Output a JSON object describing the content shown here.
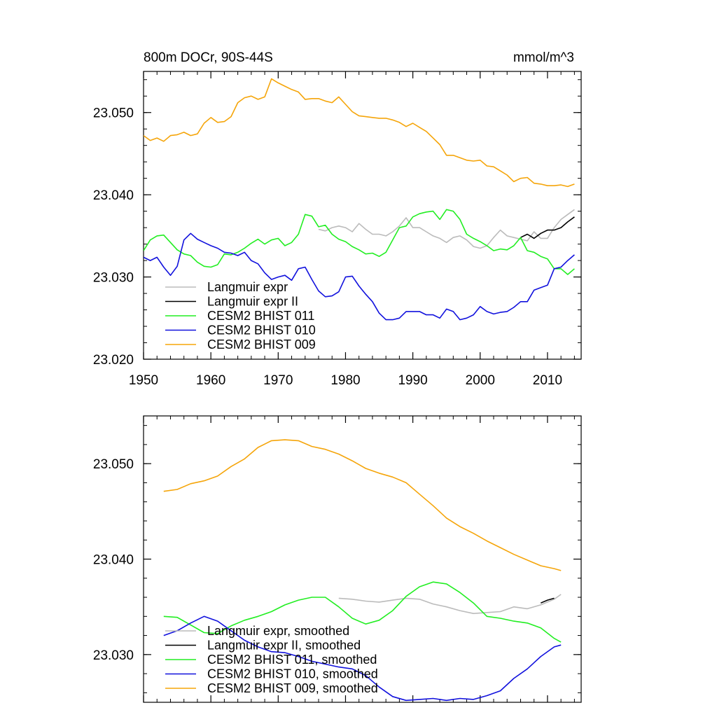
{
  "colors": {
    "langmuir": "#bbbbbb",
    "langmuir2": "#000000",
    "cesm011": "#22ee22",
    "cesm010": "#1111dd",
    "cesm009": "#f5a50a"
  },
  "chart_data": [
    {
      "type": "line",
      "title": "800m DOCr, 90S-44S",
      "units": "mmol/m^3",
      "xlim": [
        1950,
        2015
      ],
      "ylim": [
        23.02,
        23.055
      ],
      "xticks": [
        1950,
        1960,
        1970,
        1980,
        1990,
        2000,
        2010
      ],
      "xtick_labels": [
        "1950",
        "1960",
        "1970",
        "1980",
        "1990",
        "2000",
        "2010"
      ],
      "yticks": [
        23.02,
        23.03,
        23.04,
        23.05
      ],
      "ytick_labels": [
        "23.020",
        "23.030",
        "23.040",
        "23.050"
      ],
      "legend_position": "bottom-left",
      "series": [
        {
          "key": "langmuir",
          "name": "Langmuir expr",
          "x": [
            1976,
            1977,
            1978,
            1979,
            1980,
            1981,
            1982,
            1983,
            1984,
            1985,
            1986,
            1987,
            1988,
            1989,
            1990,
            1991,
            1992,
            1993,
            1994,
            1995,
            1996,
            1997,
            1998,
            1999,
            2000,
            2001,
            2002,
            2003,
            2004,
            2005,
            2006,
            2007,
            2008,
            2009,
            2010,
            2011,
            2012,
            2013,
            2014
          ],
          "y": [
            23.0358,
            23.0356,
            23.036,
            23.0362,
            23.036,
            23.0355,
            23.0365,
            23.0358,
            23.0352,
            23.0352,
            23.035,
            23.0355,
            23.0362,
            23.0372,
            23.036,
            23.036,
            23.0355,
            23.035,
            23.0347,
            23.0342,
            23.0348,
            23.035,
            23.0345,
            23.0337,
            23.0335,
            23.0338,
            23.0348,
            23.0357,
            23.035,
            23.0348,
            23.0346,
            23.0344,
            23.0355,
            23.0347,
            23.0347,
            23.036,
            23.037,
            23.0376,
            23.0382
          ]
        },
        {
          "key": "langmuir2",
          "name": "Langmuir expr II",
          "x": [
            2006,
            2007,
            2008,
            2009,
            2010,
            2011,
            2012,
            2013,
            2014
          ],
          "y": [
            23.0348,
            23.0352,
            23.0347,
            23.0353,
            23.0357,
            23.0357,
            23.036,
            23.0367,
            23.0373
          ]
        },
        {
          "key": "cesm011",
          "name": "CESM2 BHIST 011",
          "x": [
            1950,
            1951,
            1952,
            1953,
            1954,
            1955,
            1956,
            1957,
            1958,
            1959,
            1960,
            1961,
            1962,
            1963,
            1964,
            1965,
            1966,
            1967,
            1968,
            1969,
            1970,
            1971,
            1972,
            1973,
            1974,
            1975,
            1976,
            1977,
            1978,
            1979,
            1980,
            1981,
            1982,
            1983,
            1984,
            1985,
            1986,
            1987,
            1988,
            1989,
            1990,
            1991,
            1992,
            1993,
            1994,
            1995,
            1996,
            1997,
            1998,
            1999,
            2000,
            2001,
            2002,
            2003,
            2004,
            2005,
            2006,
            2007,
            2008,
            2009,
            2010,
            2011,
            2012,
            2013,
            2014
          ],
          "y": [
            23.0332,
            23.0345,
            23.035,
            23.0351,
            23.0342,
            23.0333,
            23.0328,
            23.0326,
            23.0318,
            23.0313,
            23.0312,
            23.0315,
            23.0328,
            23.0327,
            23.033,
            23.0335,
            23.0341,
            23.0346,
            23.034,
            23.0345,
            23.0347,
            23.0338,
            23.0342,
            23.0352,
            23.0376,
            23.0374,
            23.0361,
            23.0363,
            23.0352,
            23.0346,
            23.0343,
            23.0337,
            23.0333,
            23.0328,
            23.0329,
            23.0325,
            23.033,
            23.0345,
            23.036,
            23.0362,
            23.0373,
            23.0377,
            23.0379,
            23.038,
            23.037,
            23.0382,
            23.038,
            23.037,
            23.0352,
            23.0347,
            23.0343,
            23.0338,
            23.0332,
            23.0334,
            23.0333,
            23.0338,
            23.0348,
            23.0332,
            23.033,
            23.0325,
            23.0322,
            23.031,
            23.031,
            23.0303,
            23.031
          ]
        },
        {
          "key": "cesm010",
          "name": "CESM2 BHIST 010",
          "x": [
            1950,
            1951,
            1952,
            1953,
            1954,
            1955,
            1956,
            1957,
            1958,
            1959,
            1960,
            1961,
            1962,
            1963,
            1964,
            1965,
            1966,
            1967,
            1968,
            1969,
            1970,
            1971,
            1972,
            1973,
            1974,
            1975,
            1976,
            1977,
            1978,
            1979,
            1980,
            1981,
            1982,
            1983,
            1984,
            1985,
            1986,
            1987,
            1988,
            1989,
            1990,
            1991,
            1992,
            1993,
            1994,
            1995,
            1996,
            1997,
            1998,
            1999,
            2000,
            2001,
            2002,
            2003,
            2004,
            2005,
            2006,
            2007,
            2008,
            2009,
            2010,
            2011,
            2012,
            2013,
            2014
          ],
          "y": [
            23.0324,
            23.032,
            23.0324,
            23.0312,
            23.0302,
            23.0313,
            23.0345,
            23.0353,
            23.0346,
            23.0342,
            23.0338,
            23.0335,
            23.033,
            23.0329,
            23.0326,
            23.033,
            23.032,
            23.0316,
            23.0305,
            23.0297,
            23.03,
            23.0302,
            23.0296,
            23.031,
            23.0312,
            23.0297,
            23.0283,
            23.0276,
            23.0277,
            23.0282,
            23.03,
            23.0301,
            23.0289,
            23.0279,
            23.027,
            23.0256,
            23.0248,
            23.0248,
            23.025,
            23.0258,
            23.0258,
            23.0258,
            23.0254,
            23.0254,
            23.025,
            23.0261,
            23.0258,
            23.0248,
            23.025,
            23.0254,
            23.0264,
            23.0258,
            23.0255,
            23.0257,
            23.0258,
            23.0263,
            23.027,
            23.027,
            23.0284,
            23.0287,
            23.029,
            23.031,
            23.0312,
            23.032,
            23.0327
          ]
        },
        {
          "key": "cesm009",
          "name": "CESM2 BHIST 009",
          "x": [
            1950,
            1951,
            1952,
            1953,
            1954,
            1955,
            1956,
            1957,
            1958,
            1959,
            1960,
            1961,
            1962,
            1963,
            1964,
            1965,
            1966,
            1967,
            1968,
            1969,
            1970,
            1971,
            1972,
            1973,
            1974,
            1975,
            1976,
            1977,
            1978,
            1979,
            1980,
            1981,
            1982,
            1983,
            1984,
            1985,
            1986,
            1987,
            1988,
            1989,
            1990,
            1991,
            1992,
            1993,
            1994,
            1995,
            1996,
            1997,
            1998,
            1999,
            2000,
            2001,
            2002,
            2003,
            2004,
            2005,
            2006,
            2007,
            2008,
            2009,
            2010,
            2011,
            2012,
            2013,
            2014
          ],
          "y": [
            23.0472,
            23.0466,
            23.0469,
            23.0465,
            23.0472,
            23.0473,
            23.0476,
            23.0472,
            23.0474,
            23.0487,
            23.0494,
            23.0488,
            23.0489,
            23.0495,
            23.0512,
            23.0518,
            23.052,
            23.0516,
            23.0519,
            23.0541,
            23.0536,
            23.0532,
            23.0528,
            23.0525,
            23.0516,
            23.0517,
            23.0517,
            23.0514,
            23.0512,
            23.0519,
            23.051,
            23.0501,
            23.0496,
            23.0495,
            23.0494,
            23.0493,
            23.0493,
            23.0491,
            23.0488,
            23.0483,
            23.0487,
            23.0482,
            23.0477,
            23.0469,
            23.0461,
            23.0448,
            23.0448,
            23.0445,
            23.0442,
            23.0441,
            23.0442,
            23.0435,
            23.0434,
            23.0429,
            23.0424,
            23.0416,
            23.042,
            23.0421,
            23.0414,
            23.0413,
            23.0411,
            23.0411,
            23.0412,
            23.041,
            23.0413
          ]
        }
      ]
    },
    {
      "type": "line",
      "title": "",
      "xlim": [
        1950,
        2015
      ],
      "ylim": [
        23.025,
        23.055
      ],
      "xticks": [
        1950,
        1960,
        1970,
        1980,
        1990,
        2000,
        2010
      ],
      "yticks": [
        23.03,
        23.04,
        23.05
      ],
      "ytick_labels": [
        "23.030",
        "23.040",
        "23.050"
      ],
      "legend_position": "bottom-left",
      "series": [
        {
          "key": "langmuir",
          "name": "Langmuir expr, smoothed",
          "x": [
            1979,
            1981,
            1983,
            1985,
            1987,
            1989,
            1991,
            1993,
            1995,
            1997,
            1999,
            2001,
            2003,
            2005,
            2007,
            2009,
            2011,
            2012
          ],
          "y": [
            23.0359,
            23.0358,
            23.0356,
            23.0355,
            23.0357,
            23.0359,
            23.0358,
            23.0353,
            23.035,
            23.0346,
            23.0343,
            23.0344,
            23.0345,
            23.035,
            23.0348,
            23.0352,
            23.0358,
            23.0363
          ]
        },
        {
          "key": "langmuir2",
          "name": "Langmuir expr II, smoothed",
          "x": [
            2009,
            2010,
            2011
          ],
          "y": [
            23.0354,
            23.0357,
            23.0359
          ]
        },
        {
          "key": "cesm011",
          "name": "CESM2 BHIST 011, smoothed",
          "x": [
            1953,
            1955,
            1957,
            1959,
            1961,
            1963,
            1965,
            1967,
            1969,
            1971,
            1973,
            1975,
            1977,
            1979,
            1981,
            1983,
            1985,
            1987,
            1989,
            1991,
            1993,
            1995,
            1997,
            1999,
            2001,
            2003,
            2005,
            2007,
            2009,
            2011,
            2012
          ],
          "y": [
            23.034,
            23.0339,
            23.0331,
            23.0323,
            23.0322,
            23.033,
            23.0336,
            23.034,
            23.0345,
            23.0352,
            23.0357,
            23.036,
            23.036,
            23.035,
            23.0338,
            23.0332,
            23.0336,
            23.0346,
            23.0361,
            23.0371,
            23.0376,
            23.0374,
            23.0365,
            23.0354,
            23.034,
            23.0338,
            23.0335,
            23.0333,
            23.0328,
            23.0317,
            23.0313
          ]
        },
        {
          "key": "cesm010",
          "name": "CESM2 BHIST 010, smoothed",
          "x": [
            1953,
            1955,
            1957,
            1959,
            1961,
            1963,
            1965,
            1967,
            1969,
            1971,
            1973,
            1975,
            1977,
            1979,
            1981,
            1983,
            1985,
            1987,
            1989,
            1991,
            1993,
            1995,
            1997,
            1999,
            2001,
            2003,
            2005,
            2007,
            2009,
            2011,
            2012
          ],
          "y": [
            23.032,
            23.0325,
            23.0333,
            23.034,
            23.0335,
            23.0325,
            23.0315,
            23.0308,
            23.0303,
            23.0302,
            23.0298,
            23.0293,
            23.029,
            23.0287,
            23.0285,
            23.0278,
            23.0266,
            23.0256,
            23.0252,
            23.0253,
            23.0254,
            23.0252,
            23.0254,
            23.0253,
            23.0257,
            23.0262,
            23.0275,
            23.0285,
            23.0298,
            23.0308,
            23.031
          ]
        },
        {
          "key": "cesm009",
          "name": "CESM2 BHIST 009, smoothed",
          "x": [
            1953,
            1955,
            1957,
            1959,
            1961,
            1963,
            1965,
            1967,
            1969,
            1971,
            1973,
            1975,
            1977,
            1979,
            1981,
            1983,
            1985,
            1987,
            1989,
            1991,
            1993,
            1995,
            1997,
            1999,
            2001,
            2003,
            2005,
            2007,
            2009,
            2011,
            2012
          ],
          "y": [
            23.0471,
            23.0473,
            23.0479,
            23.0482,
            23.0487,
            23.0497,
            23.0505,
            23.0517,
            23.0524,
            23.0525,
            23.0524,
            23.0518,
            23.0515,
            23.051,
            23.0503,
            23.0495,
            23.049,
            23.0486,
            23.048,
            23.0468,
            23.0456,
            23.0443,
            23.0434,
            23.0427,
            23.0419,
            23.0412,
            23.0405,
            23.0399,
            23.0393,
            23.039,
            23.0388
          ]
        }
      ]
    }
  ]
}
